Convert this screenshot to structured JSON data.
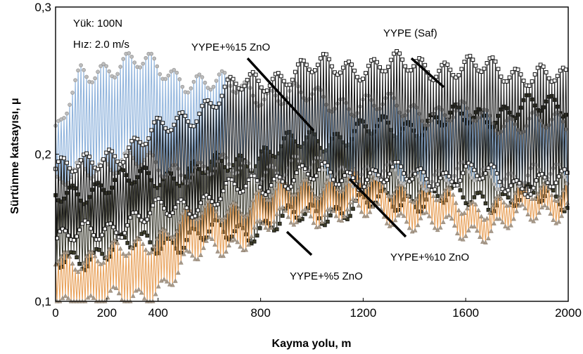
{
  "chart_data": {
    "type": "line",
    "xlabel": "Kayma yolu, m",
    "ylabel": "Sürtünme katsayısı, μ",
    "xlim": [
      0,
      2000
    ],
    "ylim": [
      0.1,
      0.3
    ],
    "x_ticks": [
      0,
      200,
      400,
      800,
      1200,
      1600,
      2000
    ],
    "x_tick_labels": [
      "0",
      "200",
      "400",
      "800",
      "1200",
      "1600",
      "2000"
    ],
    "y_ticks": [
      0.1,
      0.2,
      0.3
    ],
    "y_tick_labels": [
      "0,1",
      "0,2",
      "0,3"
    ],
    "grid": false,
    "legend": "none",
    "conditions": [
      "Yük: 100N",
      "Hız: 2.0 m/s"
    ],
    "series": [
      {
        "name": "YYPE (Saf)",
        "color": "#1a1a1a",
        "marker": "open-square",
        "x": [
          0,
          100,
          200,
          300,
          400,
          500,
          600,
          700,
          800,
          900,
          1000,
          1100,
          1200,
          1300,
          1400,
          1500,
          1600,
          1700,
          1800,
          1900,
          2000
        ],
        "upper": [
          0.19,
          0.19,
          0.2,
          0.205,
          0.215,
          0.225,
          0.235,
          0.245,
          0.25,
          0.255,
          0.258,
          0.26,
          0.26,
          0.26,
          0.26,
          0.26,
          0.258,
          0.258,
          0.256,
          0.254,
          0.248
        ],
        "lower": [
          0.14,
          0.145,
          0.15,
          0.155,
          0.16,
          0.165,
          0.17,
          0.175,
          0.18,
          0.185,
          0.185,
          0.185,
          0.185,
          0.185,
          0.185,
          0.185,
          0.185,
          0.185,
          0.18,
          0.18,
          0.18
        ]
      },
      {
        "name": "YYPE+%15 ZnO",
        "color": "#8fb3dc",
        "marker": "circle",
        "x": [
          0,
          100,
          200,
          300,
          400,
          500,
          600,
          700,
          800,
          900,
          1000,
          1100,
          1200,
          1300,
          1400,
          1500,
          1600,
          1700,
          1800,
          1900,
          2000
        ],
        "upper": [
          0.21,
          0.255,
          0.26,
          0.262,
          0.258,
          0.252,
          0.248,
          0.245,
          0.242,
          0.24,
          0.238,
          0.236,
          0.234,
          0.232,
          0.23,
          0.228,
          0.226,
          0.224,
          0.222,
          0.22,
          0.22
        ],
        "lower": [
          0.175,
          0.19,
          0.195,
          0.195,
          0.19,
          0.19,
          0.19,
          0.19,
          0.19,
          0.19,
          0.19,
          0.19,
          0.185,
          0.185,
          0.185,
          0.185,
          0.185,
          0.185,
          0.185,
          0.185,
          0.185
        ]
      },
      {
        "name": "YYPE+%10 ZnO",
        "color": "#3a3a2e",
        "marker": "filled-square",
        "x": [
          0,
          100,
          200,
          300,
          400,
          500,
          600,
          700,
          800,
          900,
          1000,
          1100,
          1200,
          1300,
          1400,
          1500,
          1600,
          1700,
          1800,
          1900,
          2000
        ],
        "upper": [
          0.17,
          0.175,
          0.18,
          0.182,
          0.185,
          0.188,
          0.19,
          0.195,
          0.2,
          0.205,
          0.21,
          0.212,
          0.215,
          0.218,
          0.22,
          0.222,
          0.225,
          0.228,
          0.23,
          0.232,
          0.235
        ],
        "lower": [
          0.125,
          0.13,
          0.135,
          0.138,
          0.14,
          0.142,
          0.145,
          0.148,
          0.15,
          0.155,
          0.16,
          0.162,
          0.165,
          0.168,
          0.17,
          0.17,
          0.17,
          0.17,
          0.17,
          0.17,
          0.17
        ]
      },
      {
        "name": "YYPE+%5 ZnO",
        "color": "#e8a15a",
        "marker": "triangle",
        "x": [
          0,
          100,
          200,
          300,
          400,
          500,
          600,
          700,
          800,
          900,
          1000,
          1100,
          1200,
          1300,
          1400,
          1500,
          1600,
          1700,
          1800,
          1900,
          2000
        ],
        "upper": [
          0.13,
          0.13,
          0.13,
          0.135,
          0.145,
          0.155,
          0.16,
          0.165,
          0.17,
          0.175,
          0.18,
          0.18,
          0.18,
          0.18,
          0.175,
          0.17,
          0.165,
          0.165,
          0.17,
          0.175,
          0.18
        ],
        "lower": [
          0.1,
          0.1,
          0.1,
          0.1,
          0.11,
          0.125,
          0.135,
          0.14,
          0.15,
          0.155,
          0.16,
          0.16,
          0.16,
          0.16,
          0.155,
          0.15,
          0.148,
          0.15,
          0.155,
          0.16,
          0.165
        ]
      }
    ],
    "annotations": [
      {
        "text": "YYPE+%15 ZnO",
        "target": "YYPE+%15 ZnO"
      },
      {
        "text": "YYPE (Saf)",
        "target": "YYPE (Saf)"
      },
      {
        "text": "YYPE+%10 ZnO",
        "target": "YYPE+%10 ZnO"
      },
      {
        "text": "YYPE+%5 ZnO",
        "target": "YYPE+%5 ZnO"
      }
    ]
  }
}
